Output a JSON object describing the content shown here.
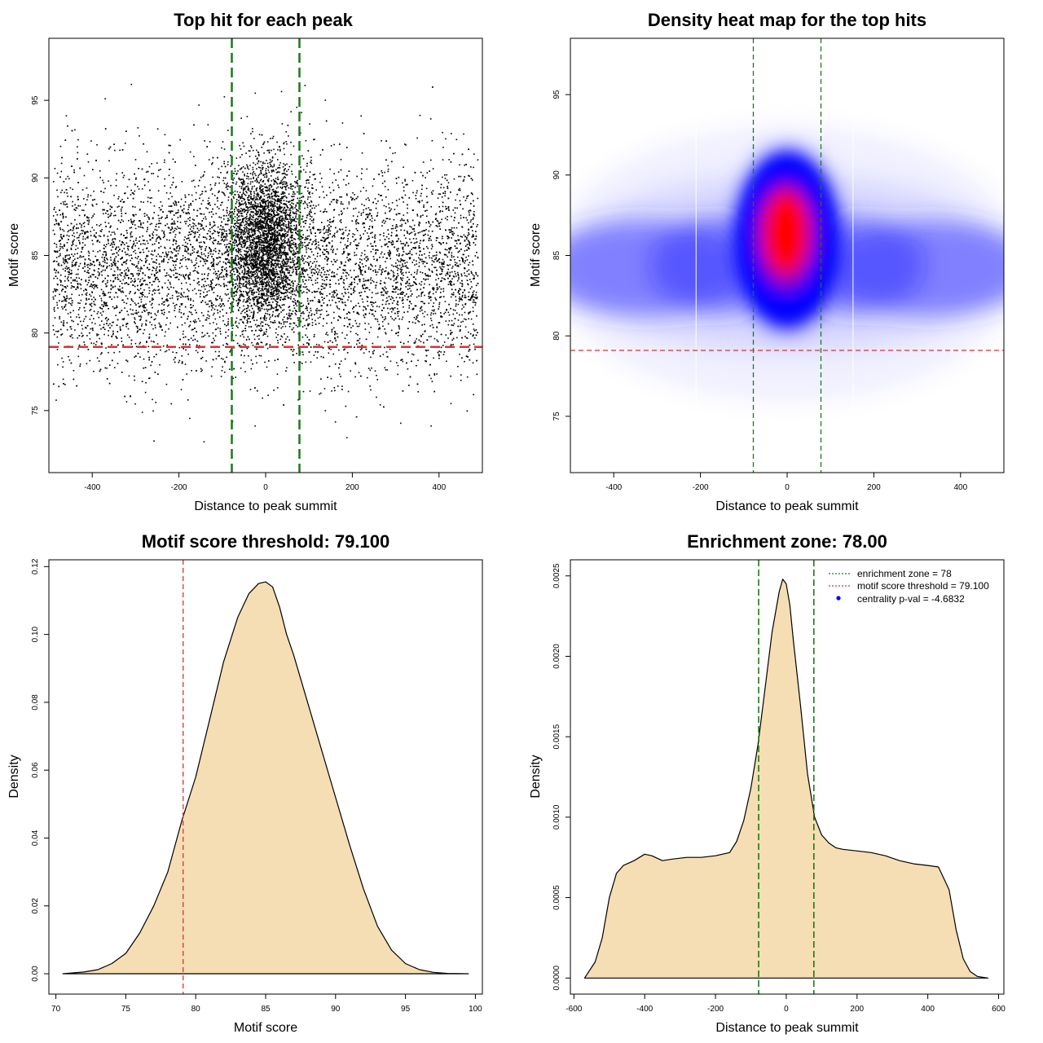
{
  "chart_data": [
    {
      "type": "scatter",
      "title": "Top hit for each peak",
      "xlabel": "Distance to peak summit",
      "ylabel": "Motif score",
      "xlim": [
        -500,
        500
      ],
      "ylim": [
        71,
        99
      ],
      "xticks": [
        -400,
        -200,
        0,
        200,
        400
      ],
      "yticks": [
        75,
        80,
        85,
        90,
        95
      ],
      "vlines": [
        -78,
        78
      ],
      "hline": 79.1,
      "grid": false,
      "points_description": "uniform background spread over x, concentrated cluster near x=0 and y~86"
    },
    {
      "type": "heatmap",
      "title": "Density heat map for the top hits",
      "xlabel": "Distance to peak summit",
      "ylabel": "Motif score",
      "xlim": [
        -500,
        500
      ],
      "ylim": [
        71.5,
        98.5
      ],
      "xticks": [
        -400,
        -200,
        0,
        200,
        400
      ],
      "yticks": [
        75,
        80,
        85,
        90,
        95
      ],
      "vlines": [
        -78,
        78
      ],
      "hline": 79.1,
      "peak": {
        "x": 0,
        "y": 86
      },
      "color_scale": [
        "#ffffff",
        "#0000ff",
        "#ff0000"
      ]
    },
    {
      "type": "area",
      "title": "Motif score threshold: 79.100",
      "xlabel": "Motif score",
      "ylabel": "Density",
      "xlim": [
        69.5,
        100.5
      ],
      "ylim": [
        -0.006,
        0.122
      ],
      "xticks": [
        70,
        75,
        80,
        85,
        90,
        95,
        100
      ],
      "yticks": [
        0.0,
        0.02,
        0.04,
        0.06,
        0.08,
        0.1,
        0.12
      ],
      "ytick_labels": [
        "0.00",
        "0.02",
        "0.04",
        "0.06",
        "0.08",
        "0.10",
        "0.12"
      ],
      "vline": 79.1,
      "fill": "#f5deb3",
      "x": [
        70.5,
        72,
        73,
        74,
        75,
        76,
        77,
        78,
        79,
        80,
        81,
        82,
        83,
        83.8,
        84.5,
        85,
        85.5,
        86,
        86.5,
        87,
        88,
        89,
        90,
        91,
        92,
        93,
        94,
        95,
        96,
        97,
        98,
        99.5
      ],
      "y": [
        0,
        0.0005,
        0.0012,
        0.003,
        0.006,
        0.012,
        0.02,
        0.03,
        0.045,
        0.058,
        0.075,
        0.092,
        0.105,
        0.112,
        0.115,
        0.1155,
        0.114,
        0.108,
        0.1,
        0.094,
        0.08,
        0.066,
        0.052,
        0.038,
        0.025,
        0.014,
        0.007,
        0.003,
        0.0012,
        0.0004,
        0.0001,
        0
      ]
    },
    {
      "type": "area",
      "title": "Enrichment zone: 78.00",
      "xlabel": "Distance to peak summit",
      "ylabel": "Density",
      "xlim": [
        -610,
        615
      ],
      "ylim": [
        -0.0001,
        0.0026
      ],
      "xticks": [
        -600,
        -400,
        -200,
        0,
        200,
        400,
        600
      ],
      "yticks": [
        0.0,
        0.0005,
        0.001,
        0.0015,
        0.002,
        0.0025
      ],
      "ytick_labels": [
        "0.0000",
        "0.0005",
        "0.0010",
        "0.0015",
        "0.0020",
        "0.0025"
      ],
      "vlines": [
        -78,
        78
      ],
      "fill": "#f5deb3",
      "x": [
        -570,
        -540,
        -520,
        -500,
        -480,
        -460,
        -430,
        -400,
        -380,
        -350,
        -320,
        -280,
        -240,
        -200,
        -160,
        -140,
        -120,
        -100,
        -80,
        -60,
        -40,
        -20,
        -10,
        0,
        10,
        20,
        40,
        60,
        80,
        100,
        120,
        140,
        160,
        200,
        240,
        280,
        320,
        360,
        400,
        430,
        460,
        480,
        500,
        520,
        540,
        570
      ],
      "y": [
        0,
        0.0001,
        0.00025,
        0.0005,
        0.00065,
        0.0007,
        0.00073,
        0.00077,
        0.00076,
        0.00073,
        0.00074,
        0.00075,
        0.00075,
        0.00076,
        0.00078,
        0.00085,
        0.00098,
        0.00118,
        0.00145,
        0.0018,
        0.00215,
        0.0024,
        0.00248,
        0.00245,
        0.00232,
        0.0021,
        0.0017,
        0.00127,
        0.001,
        0.00089,
        0.00084,
        0.00081,
        0.0008,
        0.00079,
        0.00078,
        0.00076,
        0.00073,
        0.00071,
        0.0007,
        0.00069,
        0.00055,
        0.0003,
        0.00012,
        4e-05,
        1e-05,
        0
      ],
      "legend": [
        {
          "label": "enrichment zone = 78",
          "color": "#1a7a1a",
          "kind": "line"
        },
        {
          "label": "motif score threshold = 79.100",
          "color": "#e03030",
          "kind": "line"
        },
        {
          "label": "centrality p-val = -4.6832",
          "color": "#0000ff",
          "kind": "point"
        }
      ],
      "legend_position": "top-right"
    }
  ],
  "colors": {
    "green": "#1a7a1a",
    "red": "#e03030",
    "fill": "#f5deb3"
  }
}
